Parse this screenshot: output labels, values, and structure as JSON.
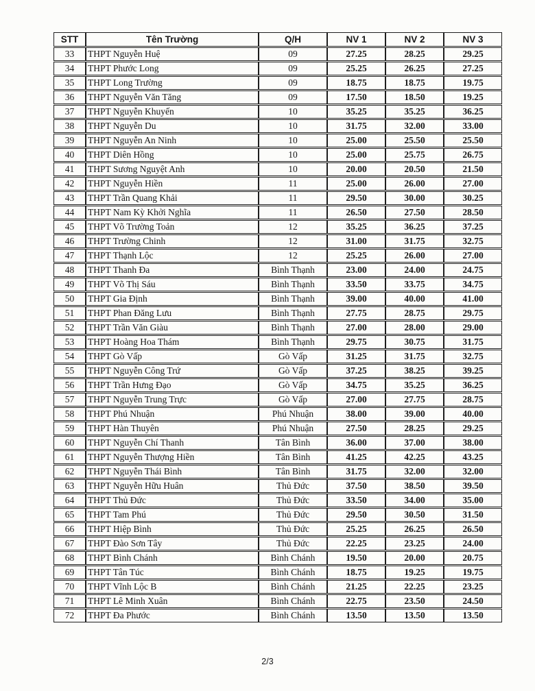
{
  "table": {
    "headers": [
      "STT",
      "Tên Trường",
      "Q/H",
      "NV 1",
      "NV 2",
      "NV 3"
    ],
    "rows": [
      [
        "33",
        "THPT Nguyễn Huệ",
        "09",
        "27.25",
        "28.25",
        "29.25"
      ],
      [
        "34",
        "THPT Phước Long",
        "09",
        "25.25",
        "26.25",
        "27.25"
      ],
      [
        "35",
        "THPT Long Trường",
        "09",
        "18.75",
        "18.75",
        "19.75"
      ],
      [
        "36",
        "THPT Nguyễn Văn Tăng",
        "09",
        "17.50",
        "18.50",
        "19.25"
      ],
      [
        "37",
        "THPT Nguyễn Khuyến",
        "10",
        "35.25",
        "35.25",
        "36.25"
      ],
      [
        "38",
        "THPT Nguyễn Du",
        "10",
        "31.75",
        "32.00",
        "33.00"
      ],
      [
        "39",
        "THPT Nguyễn An Ninh",
        "10",
        "25.00",
        "25.50",
        "25.50"
      ],
      [
        "40",
        "THPT Diên Hồng",
        "10",
        "25.00",
        "25.75",
        "26.75"
      ],
      [
        "41",
        "THPT Sương Nguyệt Anh",
        "10",
        "20.00",
        "20.50",
        "21.50"
      ],
      [
        "42",
        "THPT Nguyễn Hiền",
        "11",
        "25.00",
        "26.00",
        "27.00"
      ],
      [
        "43",
        "THPT Trần Quang Khải",
        "11",
        "29.50",
        "30.00",
        "30.25"
      ],
      [
        "44",
        "THPT Nam Kỳ Khởi Nghĩa",
        "11",
        "26.50",
        "27.50",
        "28.50"
      ],
      [
        "45",
        "THPT Võ Trường Toản",
        "12",
        "35.25",
        "36.25",
        "37.25"
      ],
      [
        "46",
        "THPT Trường Chinh",
        "12",
        "31.00",
        "31.75",
        "32.75"
      ],
      [
        "47",
        "THPT Thạnh Lộc",
        "12",
        "25.25",
        "26.00",
        "27.00"
      ],
      [
        "48",
        "THPT Thanh Đa",
        "Bình Thạnh",
        "23.00",
        "24.00",
        "24.75"
      ],
      [
        "49",
        "THPT Võ Thị Sáu",
        "Bình Thạnh",
        "33.50",
        "33.75",
        "34.75"
      ],
      [
        "50",
        "THPT Gia Định",
        "Bình Thạnh",
        "39.00",
        "40.00",
        "41.00"
      ],
      [
        "51",
        "THPT Phan Đăng Lưu",
        "Bình Thạnh",
        "27.75",
        "28.75",
        "29.75"
      ],
      [
        "52",
        "THPT Trần Văn Giàu",
        "Bình Thạnh",
        "27.00",
        "28.00",
        "29.00"
      ],
      [
        "53",
        "THPT Hoàng Hoa Thám",
        "Bình Thạnh",
        "29.75",
        "30.75",
        "31.75"
      ],
      [
        "54",
        "THPT Gò Vấp",
        "Gò Vấp",
        "31.25",
        "31.75",
        "32.75"
      ],
      [
        "55",
        "THPT Nguyễn Công Trứ",
        "Gò Vấp",
        "37.25",
        "38.25",
        "39.25"
      ],
      [
        "56",
        "THPT Trần Hưng Đạo",
        "Gò Vấp",
        "34.75",
        "35.25",
        "36.25"
      ],
      [
        "57",
        "THPT Nguyễn Trung Trực",
        "Gò Vấp",
        "27.00",
        "27.75",
        "28.75"
      ],
      [
        "58",
        "THPT Phú Nhuận",
        "Phú Nhuận",
        "38.00",
        "39.00",
        "40.00"
      ],
      [
        "59",
        "THPT Hàn Thuyên",
        "Phú Nhuận",
        "27.50",
        "28.25",
        "29.25"
      ],
      [
        "60",
        "THPT Nguyễn Chí Thanh",
        "Tân Bình",
        "36.00",
        "37.00",
        "38.00"
      ],
      [
        "61",
        "THPT Nguyễn Thượng Hiền",
        "Tân Bình",
        "41.25",
        "42.25",
        "43.25"
      ],
      [
        "62",
        "THPT Nguyễn Thái Bình",
        "Tân Bình",
        "31.75",
        "32.00",
        "32.00"
      ],
      [
        "63",
        "THPT Nguyễn Hữu Huân",
        "Thủ Đức",
        "37.50",
        "38.50",
        "39.50"
      ],
      [
        "64",
        "THPT Thủ Đức",
        "Thủ Đức",
        "33.50",
        "34.00",
        "35.00"
      ],
      [
        "65",
        "THPT Tam Phú",
        "Thủ Đức",
        "29.50",
        "30.50",
        "31.50"
      ],
      [
        "66",
        "THPT Hiệp Bình",
        "Thủ Đức",
        "25.25",
        "26.25",
        "26.50"
      ],
      [
        "67",
        "THPT Đào Sơn Tây",
        "Thủ Đức",
        "22.25",
        "23.25",
        "24.00"
      ],
      [
        "68",
        "THPT Bình Chánh",
        "Bình Chánh",
        "19.50",
        "20.00",
        "20.75"
      ],
      [
        "69",
        "THPT Tân Túc",
        "Bình Chánh",
        "18.75",
        "19.25",
        "19.75"
      ],
      [
        "70",
        "THPT Vĩnh Lộc B",
        "Bình Chánh",
        "21.25",
        "22.25",
        "23.25"
      ],
      [
        "71",
        "THPT Lê Minh Xuân",
        "Bình Chánh",
        "22.75",
        "23.50",
        "24.50"
      ],
      [
        "72",
        "THPT Đa Phước",
        "Bình Chánh",
        "13.50",
        "13.50",
        "13.50"
      ]
    ]
  },
  "footer": {
    "page_indicator": "2/3"
  },
  "colors": {
    "border": "#1e1e1e",
    "background": "#fcfcfa",
    "text": "#161616"
  }
}
